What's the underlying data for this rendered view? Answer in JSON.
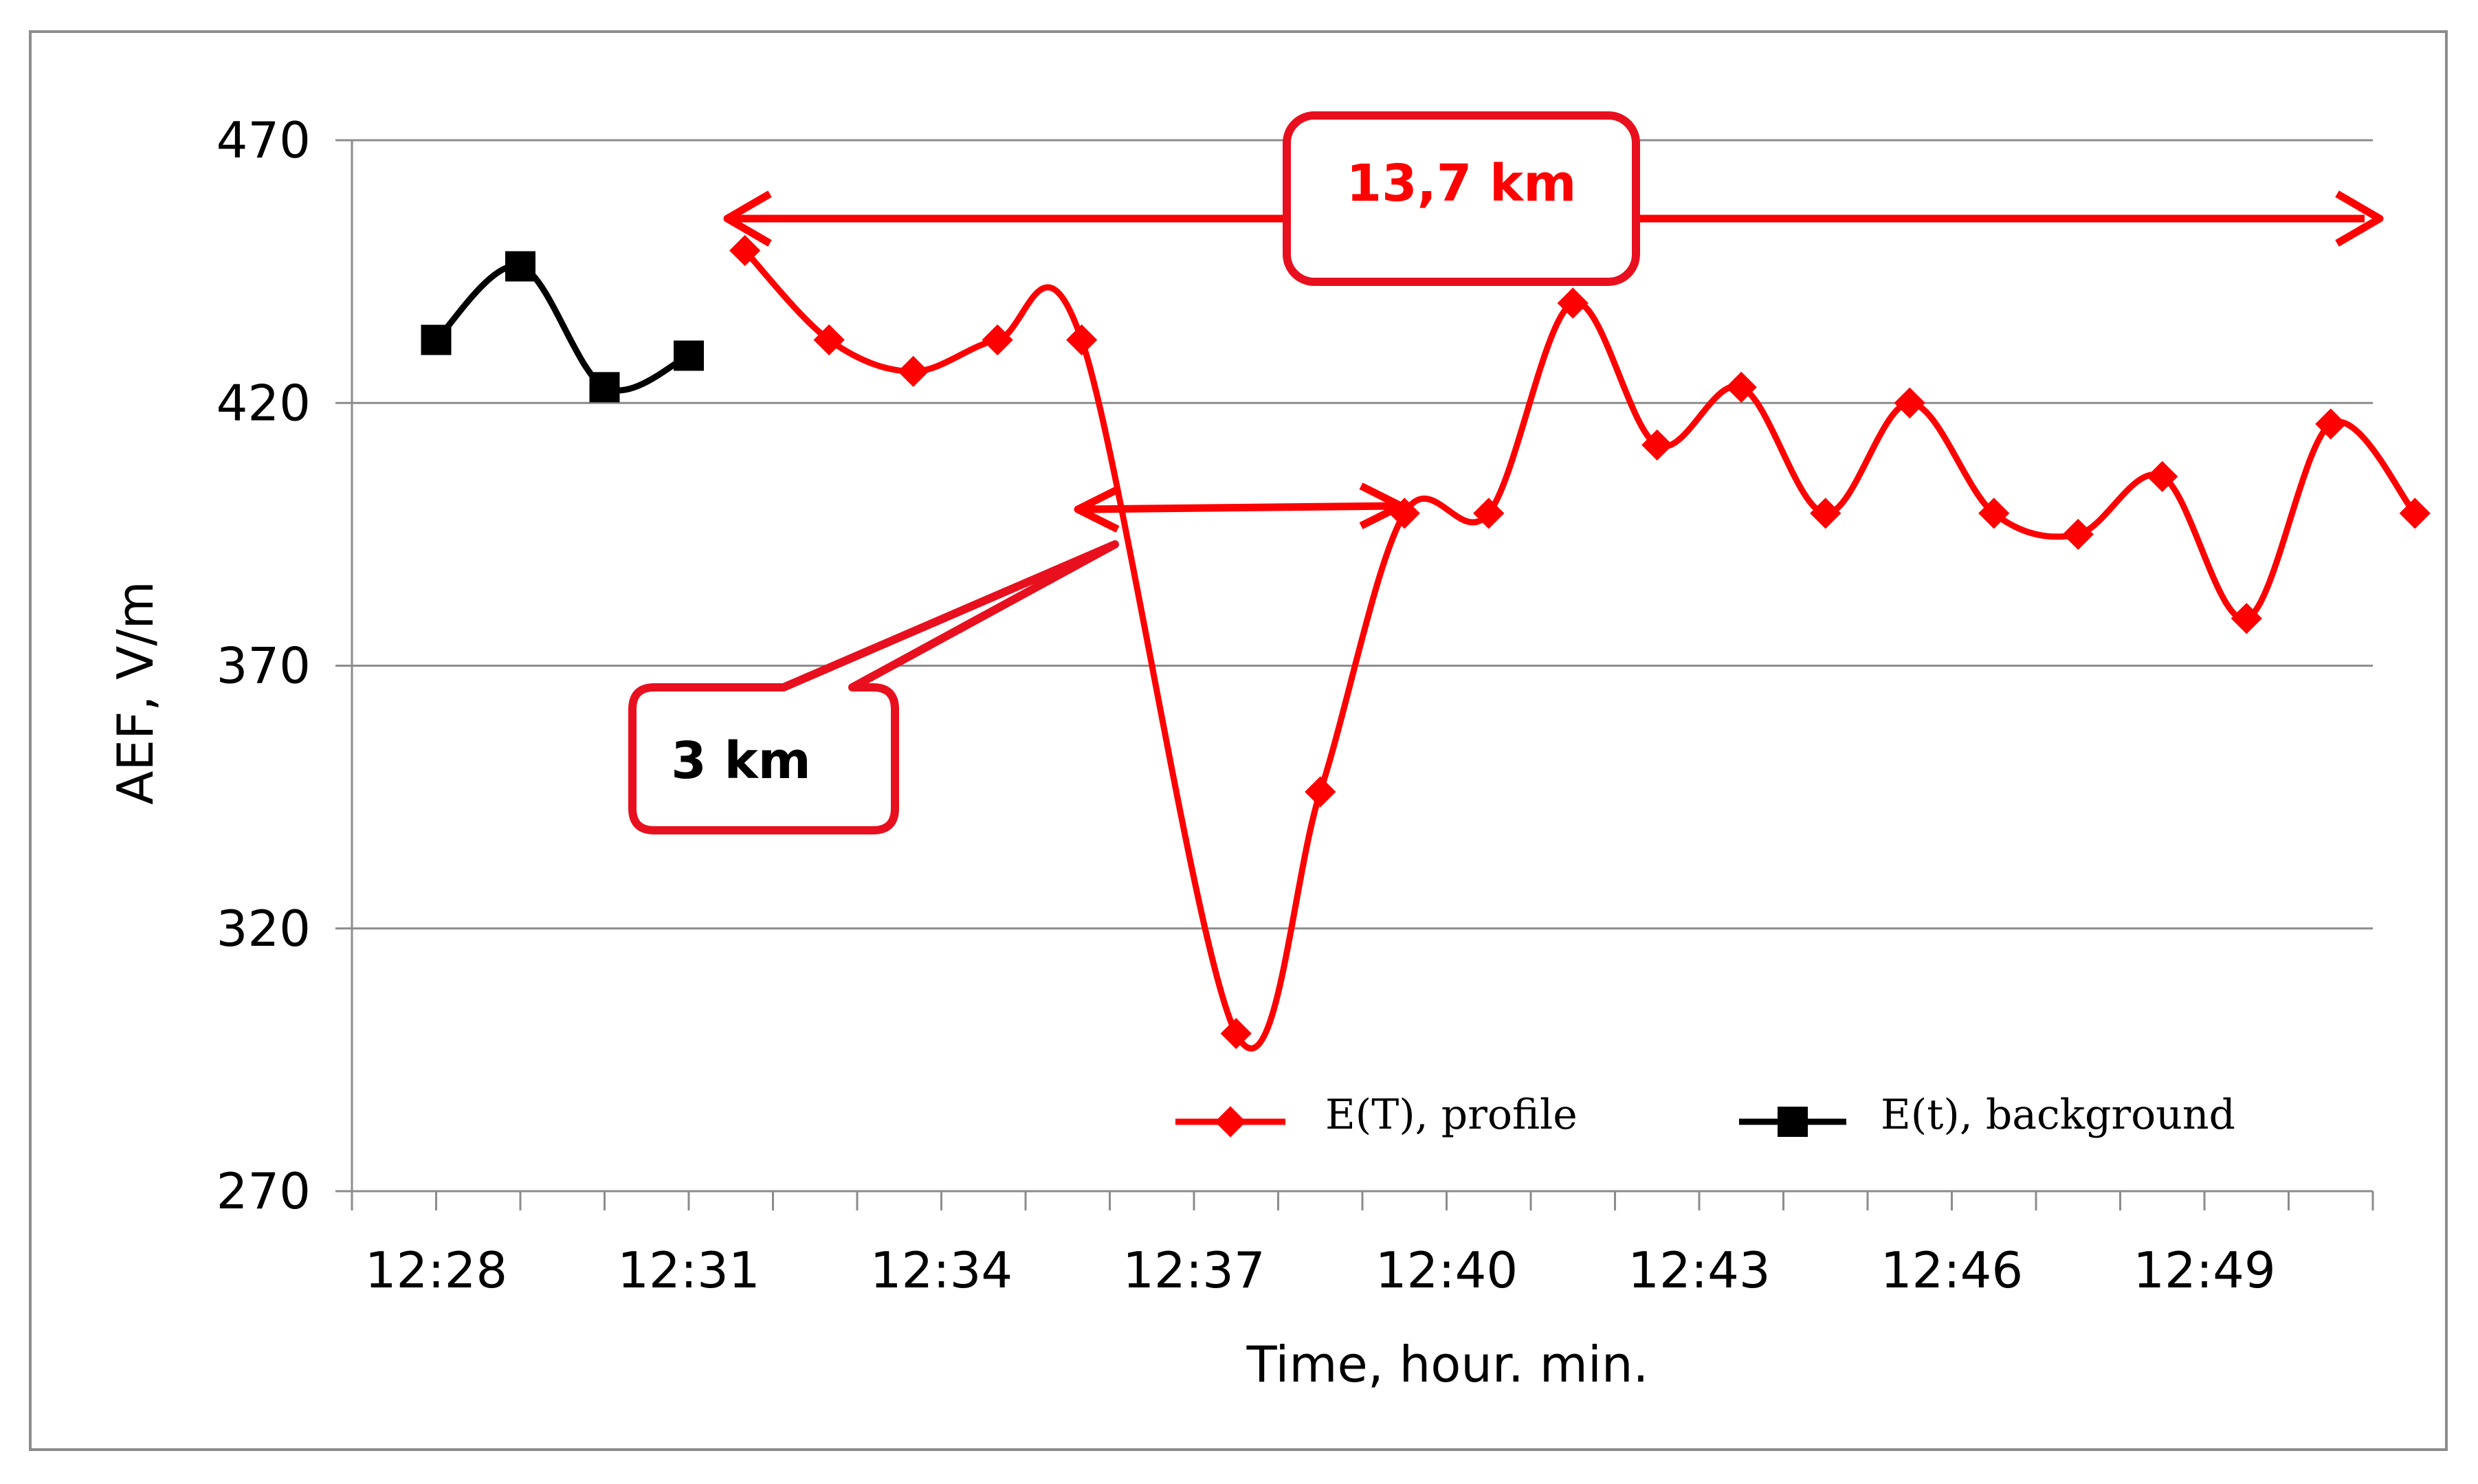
{
  "chart_data": {
    "type": "line",
    "xlabel": "Time, hour. min.",
    "ylabel": "AEF, V/m",
    "ylim": [
      270,
      470
    ],
    "yticks": [
      270,
      320,
      370,
      420,
      470
    ],
    "xlim": [
      "12:27",
      "12:51"
    ],
    "xticks": [
      "12:28",
      "12:31",
      "12:34",
      "12:37",
      "12:40",
      "12:43",
      "12:46",
      "12:49"
    ],
    "grid": "horizontal",
    "legend_position": "bottom-right",
    "series": [
      {
        "name": "E(T), profile",
        "color": "#ff0000",
        "marker": "diamond",
        "points": [
          {
            "x": "12:31:40",
            "y": 449
          },
          {
            "x": "12:32:40",
            "y": 432
          },
          {
            "x": "12:33:40",
            "y": 426
          },
          {
            "x": "12:34:40",
            "y": 432
          },
          {
            "x": "12:35:40",
            "y": 432
          },
          {
            "x": "12:37:30",
            "y": 300
          },
          {
            "x": "12:38:30",
            "y": 346
          },
          {
            "x": "12:39:30",
            "y": 399
          },
          {
            "x": "12:40:30",
            "y": 399
          },
          {
            "x": "12:41:30",
            "y": 439
          },
          {
            "x": "12:42:30",
            "y": 412
          },
          {
            "x": "12:43:30",
            "y": 423
          },
          {
            "x": "12:44:30",
            "y": 399
          },
          {
            "x": "12:45:30",
            "y": 420
          },
          {
            "x": "12:46:30",
            "y": 399
          },
          {
            "x": "12:47:30",
            "y": 395
          },
          {
            "x": "12:48:30",
            "y": 406
          },
          {
            "x": "12:49:30",
            "y": 379
          },
          {
            "x": "12:50:30",
            "y": 416
          },
          {
            "x": "12:51:30",
            "y": 399
          }
        ]
      },
      {
        "name": "E(t), background",
        "color": "#000000",
        "marker": "square",
        "points": [
          {
            "x": "12:28",
            "y": 432
          },
          {
            "x": "12:29",
            "y": 446
          },
          {
            "x": "12:30",
            "y": 423
          },
          {
            "x": "12:31",
            "y": 429
          }
        ]
      }
    ],
    "annotations": [
      {
        "text": "13,7 km",
        "color": "#ff0000"
      },
      {
        "text": "3 km",
        "color": "#000000"
      }
    ]
  }
}
